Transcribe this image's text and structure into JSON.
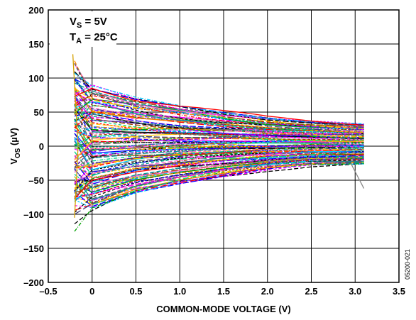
{
  "chart_data": {
    "type": "line",
    "xlabel": "COMMON-MODE VOLTAGE (V)",
    "ylabel": "V",
    "ylabel_sub": "OS",
    "ylabel_unit": " (µV)",
    "xlim": [
      -0.5,
      3.5
    ],
    "ylim": [
      -200,
      200
    ],
    "x_ticks": [
      -0.5,
      0,
      0.5,
      1.0,
      1.5,
      2.0,
      2.5,
      3.0,
      3.5
    ],
    "x_tick_labels": [
      "–0.5",
      "0",
      "0.5",
      "1.0",
      "1.5",
      "2.0",
      "2.5",
      "3.0",
      "3.5"
    ],
    "y_ticks": [
      200,
      150,
      100,
      50,
      0,
      -50,
      -100,
      -150,
      -200
    ],
    "y_tick_labels": [
      "200",
      "150",
      "100",
      "50",
      "0",
      "–50",
      "–100",
      "–150",
      "–200"
    ],
    "grid": true,
    "annotation_vs": {
      "main": "V",
      "sub": "S",
      "rest": " = 5V"
    },
    "annotation_ta": {
      "main": "T",
      "sub": "A",
      "rest": " = 25°C"
    },
    "figure_id": "05200-021",
    "series_description": "Offset voltage vs. common-mode voltage for many units (multi-colored dashed traces), envelope approximately ±90 µV near 0 V narrowing to approximately ±30 µV at 3.1 V",
    "envelope": {
      "x": [
        -0.2,
        0,
        0.5,
        1.0,
        1.5,
        2.0,
        2.5,
        3.1
      ],
      "upper": [
        110,
        90,
        72,
        60,
        50,
        42,
        37,
        33
      ],
      "lower": [
        -95,
        -95,
        -70,
        -55,
        -44,
        -35,
        -29,
        -27
      ]
    },
    "colors": [
      "#000000",
      "#ff00ff",
      "#0000ff",
      "#00c8ff",
      "#ff0000",
      "#00a000",
      "#ff8000",
      "#8000ff",
      "#ffcc00",
      "#00d080",
      "#a04000",
      "#404080",
      "#ff66cc",
      "#009999",
      "#666666"
    ]
  }
}
